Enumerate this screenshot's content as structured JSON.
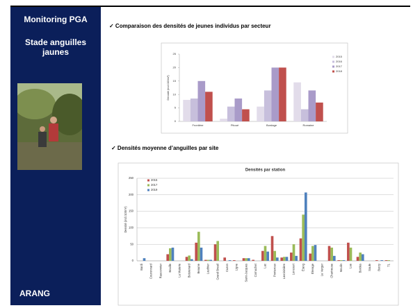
{
  "sidebar": {
    "title": "Monitoring PGA",
    "subtitle": "Stade anguilles jaunes",
    "footer": "ARANG"
  },
  "sections": [
    "✓ Comparaison des densités de jeunes individus par secteur",
    "✓ Densités moyenne d’anguilles par site"
  ],
  "chart_data": [
    {
      "type": "bar",
      "y_label": "Densité (ind./100m²)",
      "categories": [
        "Frontière",
        "Pitoué",
        "Bordage",
        "Romaine"
      ],
      "series": [
        {
          "name": "2015",
          "color": "#e2dcea",
          "values": [
            8,
            1,
            5.5,
            14.5
          ]
        },
        {
          "name": "2016",
          "color": "#c7bfdc",
          "values": [
            8.5,
            5.5,
            11.5,
            4.5
          ]
        },
        {
          "name": "2017",
          "color": "#a99bc9",
          "values": [
            15,
            8.5,
            20,
            11.5
          ]
        },
        {
          "name": "2018",
          "color": "#c0504d",
          "values": [
            11,
            4.5,
            20,
            7
          ]
        }
      ],
      "ylim": [
        0,
        25
      ],
      "yticks": [
        0,
        5,
        10,
        15,
        20,
        25
      ],
      "grid": false,
      "legend": "right"
    },
    {
      "type": "bar",
      "title": "Densités par station",
      "y_label": "Densité (ind./100m²)",
      "categories": [
        "Bardi",
        "Couronnard",
        "Rauconnier",
        "Bouille",
        "La Materie",
        "Boisrenard",
        "Beaune",
        "Lauthier",
        "Grand Breuil",
        "Cuzon",
        "Ligne",
        "Saint-Jacques",
        "Cornuchet",
        "Lac",
        "Ponteroux",
        "Lavoisinière",
        "Loncourt",
        "Étang",
        "Élevage",
        "Le Verger",
        "Chartreuse",
        "Moulin",
        "Lue",
        "Bordes",
        "Saule",
        "Burzy",
        "T1"
      ],
      "series": [
        {
          "name": "2015",
          "color": "#c0504d",
          "values": [
            null,
            null,
            null,
            20,
            null,
            12,
            55,
            3,
            50,
            10,
            2,
            8,
            3,
            30,
            75,
            10,
            25,
            68,
            22,
            null,
            45,
            2,
            55,
            12,
            null,
            2,
            2
          ]
        },
        {
          "name": "2017",
          "color": "#9bbb59",
          "values": [
            null,
            null,
            null,
            38,
            null,
            16,
            88,
            3,
            60,
            null,
            null,
            8,
            null,
            45,
            30,
            12,
            50,
            140,
            45,
            null,
            40,
            2,
            40,
            25,
            null,
            null,
            2
          ]
        },
        {
          "name": "2019",
          "color": "#4f81bd",
          "values": [
            8,
            null,
            null,
            40,
            null,
            5,
            40,
            3,
            null,
            2,
            null,
            8,
            null,
            28,
            10,
            12,
            15,
            207,
            48,
            null,
            15,
            2,
            null,
            20,
            null,
            2,
            null
          ]
        }
      ],
      "ylim": [
        0,
        250
      ],
      "yticks": [
        0,
        50,
        100,
        150,
        200,
        250
      ],
      "grid": true,
      "legend": "top-left"
    }
  ]
}
